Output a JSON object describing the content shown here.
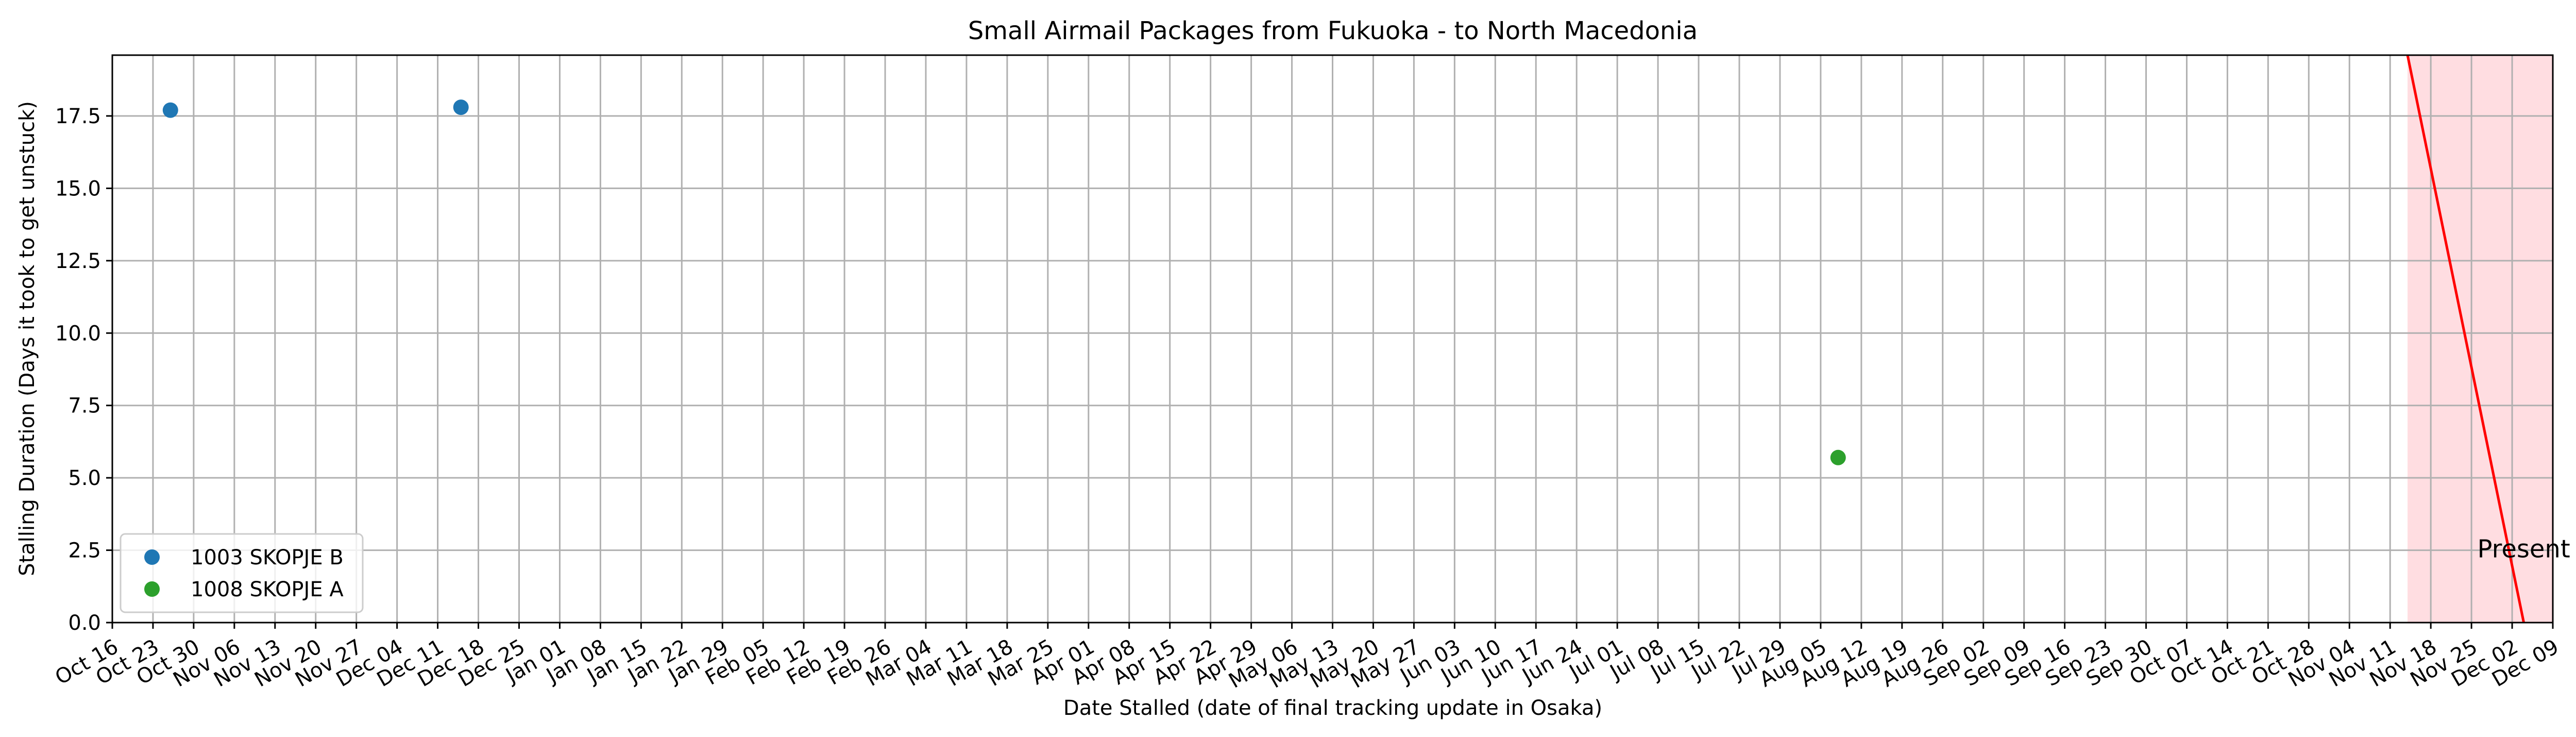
{
  "chart_data": {
    "type": "scatter",
    "title": "Small Airmail Packages from Fukuoka - to North Macedonia",
    "xlabel": "Date Stalled (date of final tracking update in Osaka)",
    "ylabel": "Stalling Duration (Days it took to get unstuck)",
    "x_type": "date",
    "xlim": [
      "2023-10-16",
      "2024-12-09"
    ],
    "ylim": [
      0,
      19.6
    ],
    "x_ticks": [
      {
        "date": "2023-10-16",
        "label": "Oct 16"
      },
      {
        "date": "2023-10-23",
        "label": "Oct 23"
      },
      {
        "date": "2023-10-30",
        "label": "Oct 30"
      },
      {
        "date": "2023-11-06",
        "label": "Nov 06"
      },
      {
        "date": "2023-11-13",
        "label": "Nov 13"
      },
      {
        "date": "2023-11-20",
        "label": "Nov 20"
      },
      {
        "date": "2023-11-27",
        "label": "Nov 27"
      },
      {
        "date": "2023-12-04",
        "label": "Dec 04"
      },
      {
        "date": "2023-12-11",
        "label": "Dec 11"
      },
      {
        "date": "2023-12-18",
        "label": "Dec 18"
      },
      {
        "date": "2023-12-25",
        "label": "Dec 25"
      },
      {
        "date": "2024-01-01",
        "label": "Jan 01"
      },
      {
        "date": "2024-01-08",
        "label": "Jan 08"
      },
      {
        "date": "2024-01-15",
        "label": "Jan 15"
      },
      {
        "date": "2024-01-22",
        "label": "Jan 22"
      },
      {
        "date": "2024-01-29",
        "label": "Jan 29"
      },
      {
        "date": "2024-02-05",
        "label": "Feb 05"
      },
      {
        "date": "2024-02-12",
        "label": "Feb 12"
      },
      {
        "date": "2024-02-19",
        "label": "Feb 19"
      },
      {
        "date": "2024-02-26",
        "label": "Feb 26"
      },
      {
        "date": "2024-03-04",
        "label": "Mar 04"
      },
      {
        "date": "2024-03-11",
        "label": "Mar 11"
      },
      {
        "date": "2024-03-18",
        "label": "Mar 18"
      },
      {
        "date": "2024-03-25",
        "label": "Mar 25"
      },
      {
        "date": "2024-04-01",
        "label": "Apr 01"
      },
      {
        "date": "2024-04-08",
        "label": "Apr 08"
      },
      {
        "date": "2024-04-15",
        "label": "Apr 15"
      },
      {
        "date": "2024-04-22",
        "label": "Apr 22"
      },
      {
        "date": "2024-04-29",
        "label": "Apr 29"
      },
      {
        "date": "2024-05-06",
        "label": "May 06"
      },
      {
        "date": "2024-05-13",
        "label": "May 13"
      },
      {
        "date": "2024-05-20",
        "label": "May 20"
      },
      {
        "date": "2024-05-27",
        "label": "May 27"
      },
      {
        "date": "2024-06-03",
        "label": "Jun 03"
      },
      {
        "date": "2024-06-10",
        "label": "Jun 10"
      },
      {
        "date": "2024-06-17",
        "label": "Jun 17"
      },
      {
        "date": "2024-06-24",
        "label": "Jun 24"
      },
      {
        "date": "2024-07-01",
        "label": "Jul 01"
      },
      {
        "date": "2024-07-08",
        "label": "Jul 08"
      },
      {
        "date": "2024-07-15",
        "label": "Jul 15"
      },
      {
        "date": "2024-07-22",
        "label": "Jul 22"
      },
      {
        "date": "2024-07-29",
        "label": "Jul 29"
      },
      {
        "date": "2024-08-05",
        "label": "Aug 05"
      },
      {
        "date": "2024-08-12",
        "label": "Aug 12"
      },
      {
        "date": "2024-08-19",
        "label": "Aug 19"
      },
      {
        "date": "2024-08-26",
        "label": "Aug 26"
      },
      {
        "date": "2024-09-02",
        "label": "Sep 02"
      },
      {
        "date": "2024-09-09",
        "label": "Sep 09"
      },
      {
        "date": "2024-09-16",
        "label": "Sep 16"
      },
      {
        "date": "2024-09-23",
        "label": "Sep 23"
      },
      {
        "date": "2024-09-30",
        "label": "Sep 30"
      },
      {
        "date": "2024-10-07",
        "label": "Oct 07"
      },
      {
        "date": "2024-10-14",
        "label": "Oct 14"
      },
      {
        "date": "2024-10-21",
        "label": "Oct 21"
      },
      {
        "date": "2024-10-28",
        "label": "Oct 28"
      },
      {
        "date": "2024-11-04",
        "label": "Nov 04"
      },
      {
        "date": "2024-11-11",
        "label": "Nov 11"
      },
      {
        "date": "2024-11-18",
        "label": "Nov 18"
      },
      {
        "date": "2024-11-25",
        "label": "Nov 25"
      },
      {
        "date": "2024-12-02",
        "label": "Dec 02"
      },
      {
        "date": "2024-12-09",
        "label": "Dec 09"
      }
    ],
    "y_ticks": [
      {
        "value": 0.0,
        "label": "0.0"
      },
      {
        "value": 2.5,
        "label": "2.5"
      },
      {
        "value": 5.0,
        "label": "5.0"
      },
      {
        "value": 7.5,
        "label": "7.5"
      },
      {
        "value": 10.0,
        "label": "10.0"
      },
      {
        "value": 12.5,
        "label": "12.5"
      },
      {
        "value": 15.0,
        "label": "15.0"
      },
      {
        "value": 17.5,
        "label": "17.5"
      }
    ],
    "grid": true,
    "legend_position": "lower-left",
    "series": [
      {
        "name": "1003 SKOPJE B",
        "color": "#1f77b4",
        "points": [
          {
            "x": "2023-10-26",
            "y": 17.7
          },
          {
            "x": "2023-12-15",
            "y": 17.8
          }
        ]
      },
      {
        "name": "1008 SKOPJE A",
        "color": "#2ca02c",
        "points": [
          {
            "x": "2024-08-08",
            "y": 5.7
          }
        ]
      }
    ],
    "present_marker": {
      "label": "Present",
      "color": "#ff0000",
      "shade_color": "#ffdde1",
      "line_start": {
        "x": "2024-11-14",
        "y": 19.6
      },
      "line_end": {
        "x": "2024-12-04",
        "y": 0
      },
      "shade_from": "2024-11-14",
      "shade_to": "2024-12-09",
      "label_anchor": {
        "x": "2024-12-04",
        "y": 2.5
      }
    }
  }
}
